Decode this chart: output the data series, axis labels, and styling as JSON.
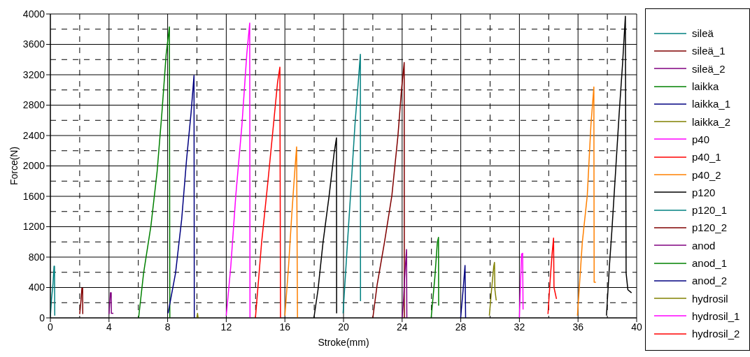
{
  "chart_data": {
    "type": "line",
    "xlabel": "Stroke(mm)",
    "ylabel": "Force(N)",
    "xlim": [
      0,
      40
    ],
    "xticks": [
      0,
      4,
      8,
      12,
      16,
      20,
      24,
      28,
      32,
      36,
      40
    ],
    "ylim": [
      0,
      4000
    ],
    "yticks": [
      0,
      400,
      800,
      1200,
      1600,
      2000,
      2400,
      2800,
      3200,
      3600,
      4000
    ],
    "grid": true,
    "legend": "right",
    "marker": "none",
    "line_style": "solid",
    "series": [
      {
        "name": "sileä",
        "color": "#008080",
        "x": [
          0,
          0.08,
          0.18,
          0.25,
          0.28,
          0.3
        ],
        "values": [
          20,
          250,
          450,
          680,
          680,
          30
        ]
      },
      {
        "name": "sileä_1",
        "color": "#800000",
        "x": [
          2.0,
          2.1,
          2.15,
          2.2,
          2.21
        ],
        "values": [
          50,
          250,
          390,
          390,
          50
        ]
      },
      {
        "name": "sileä_2",
        "color": "#800080",
        "x": [
          4.0,
          4.05,
          4.1,
          4.15,
          4.16,
          4.3
        ],
        "values": [
          50,
          200,
          330,
          330,
          60,
          60
        ]
      },
      {
        "name": "laikka",
        "color": "#008000",
        "x": [
          6.02,
          6.36,
          6.86,
          7.28,
          7.61,
          7.9,
          8.12,
          8.15
        ],
        "values": [
          0,
          590,
          1210,
          1920,
          2700,
          3470,
          3830,
          0
        ]
      },
      {
        "name": "laikka_1",
        "color": "#000080",
        "x": [
          8.03,
          8.54,
          8.96,
          9.29,
          9.6,
          9.8,
          9.82
        ],
        "values": [
          60,
          590,
          1300,
          2080,
          2700,
          3190,
          0
        ]
      },
      {
        "name": "laikka_2",
        "color": "#808000",
        "x": [
          10.0,
          10.04,
          10.08
        ],
        "values": [
          0,
          60,
          0
        ]
      },
      {
        "name": "p40",
        "color": "#ff00ff",
        "x": [
          12.0,
          12.31,
          12.65,
          13.07,
          13.4,
          13.6,
          13.62
        ],
        "values": [
          30,
          680,
          1610,
          2540,
          3470,
          3880,
          0
        ]
      },
      {
        "name": "p40_1",
        "color": "#ff0000",
        "x": [
          13.99,
          14.41,
          14.83,
          15.25,
          15.5,
          15.66,
          15.7
        ],
        "values": [
          0,
          990,
          1770,
          2600,
          3100,
          3300,
          0
        ]
      },
      {
        "name": "p40_2",
        "color": "#ff8000",
        "x": [
          16.0,
          16.25,
          16.47,
          16.67,
          16.8,
          16.86
        ],
        "values": [
          30,
          680,
          1360,
          1920,
          2250,
          0
        ]
      },
      {
        "name": "p120",
        "color": "#000000",
        "x": [
          17.98,
          18.26,
          18.6,
          19.02,
          19.36,
          19.52,
          19.53
        ],
        "values": [
          0,
          370,
          990,
          1610,
          2170,
          2370,
          60
        ]
      },
      {
        "name": "p120_1",
        "color": "#008080",
        "x": [
          19.97,
          20.27,
          20.53,
          20.78,
          21.03,
          21.15,
          21.16
        ],
        "values": [
          60,
          990,
          1770,
          2540,
          3160,
          3470,
          220
        ]
      },
      {
        "name": "p120_2",
        "color": "#800000",
        "x": [
          22.0,
          22.29,
          22.79,
          23.3,
          23.71,
          23.96,
          24.14,
          24.15
        ],
        "values": [
          0,
          430,
          990,
          1610,
          2390,
          3010,
          3360,
          0
        ]
      },
      {
        "name": "anod",
        "color": "#800080",
        "x": [
          24.0,
          24.1,
          24.17,
          24.3,
          24.32
        ],
        "values": [
          0,
          250,
          530,
          900,
          0
        ]
      },
      {
        "name": "anod_1",
        "color": "#008000",
        "x": [
          25.98,
          26.23,
          26.4,
          26.48,
          26.49
        ],
        "values": [
          0,
          530,
          990,
          1060,
          160
        ]
      },
      {
        "name": "anod_2",
        "color": "#000080",
        "x": [
          27.99,
          28.16,
          28.29,
          28.33
        ],
        "values": [
          0,
          370,
          690,
          0
        ]
      },
      {
        "name": "hydrosil",
        "color": "#808000",
        "x": [
          29.95,
          30.1,
          30.25,
          30.3,
          30.33,
          30.42
        ],
        "values": [
          30,
          370,
          680,
          730,
          370,
          230
        ]
      },
      {
        "name": "hydrosil_1",
        "color": "#ff00ff",
        "x": [
          32.0,
          32.07,
          32.15,
          32.22,
          32.25
        ],
        "values": [
          0,
          430,
          840,
          850,
          110
        ]
      },
      {
        "name": "hydrosil_2",
        "color": "#ff0000",
        "x": [
          33.95,
          34.11,
          34.23,
          34.33,
          34.36,
          34.53
        ],
        "values": [
          50,
          530,
          840,
          1050,
          400,
          250
        ]
      },
      {
        "color": "#ff8000",
        "x": [
          35.96,
          36.29,
          36.63,
          36.88,
          37.08,
          37.1,
          37.22
        ],
        "values": [
          30,
          990,
          1610,
          2540,
          3040,
          470,
          470
        ]
      },
      {
        "color": "#000000",
        "x": [
          37.94,
          38.14,
          38.31,
          38.56,
          38.81,
          39.03,
          39.23,
          39.28,
          39.4,
          39.65
        ],
        "values": [
          30,
          680,
          1150,
          1920,
          2700,
          3320,
          3970,
          590,
          370,
          330
        ]
      }
    ]
  }
}
